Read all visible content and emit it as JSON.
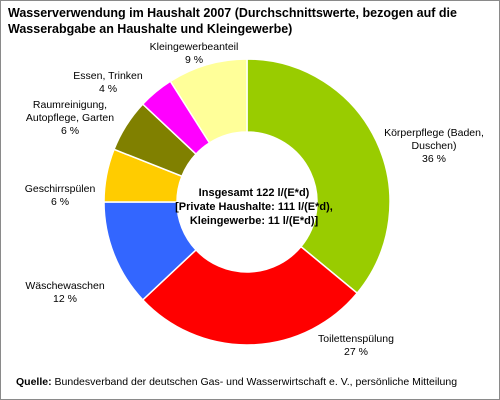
{
  "title": "Wasserverwendung im Haushalt 2007 (Durchschnittswerte, bezogen auf die Wasserabgabe an Haushalte und Kleingewerbe)",
  "center_text": [
    "Insgesamt 122 l/(E*d)",
    "[Private Haushalte: 111 l/(E*d),",
    "Kleingewerbe: 11 l/(E*d)]"
  ],
  "source": {
    "label": "Quelle:",
    "text": "Bundesverband der deutschen Gas- und Wasserwirtschaft e. V., persönliche Mitteilung"
  },
  "chart_data": {
    "type": "pie",
    "donut": true,
    "start": "12 o'clock, clockwise",
    "slices": [
      {
        "lines": [
          "Körperpflege (Baden,",
          "Duschen)"
        ],
        "value": 36,
        "value_label": "36 %",
        "color": "#99cc00"
      },
      {
        "lines": [
          "Toilettenspülung"
        ],
        "value": 27,
        "value_label": "27 %",
        "color": "#ff0000"
      },
      {
        "lines": [
          "Wäschewaschen"
        ],
        "value": 12,
        "value_label": "12 %",
        "color": "#3366ff"
      },
      {
        "lines": [
          "Geschirrspülen"
        ],
        "value": 6,
        "value_label": "6 %",
        "color": "#ffcc00"
      },
      {
        "lines": [
          "Raumreinigung,",
          "Autopflege, Garten"
        ],
        "value": 6,
        "value_label": "6 %",
        "color": "#808000"
      },
      {
        "lines": [
          "Essen, Trinken"
        ],
        "value": 4,
        "value_label": "4 %",
        "color": "#ff00ff"
      },
      {
        "lines": [
          "Kleingewerbeanteil"
        ],
        "value": 9,
        "value_label": "9 %",
        "color": "#ffff99"
      }
    ]
  }
}
